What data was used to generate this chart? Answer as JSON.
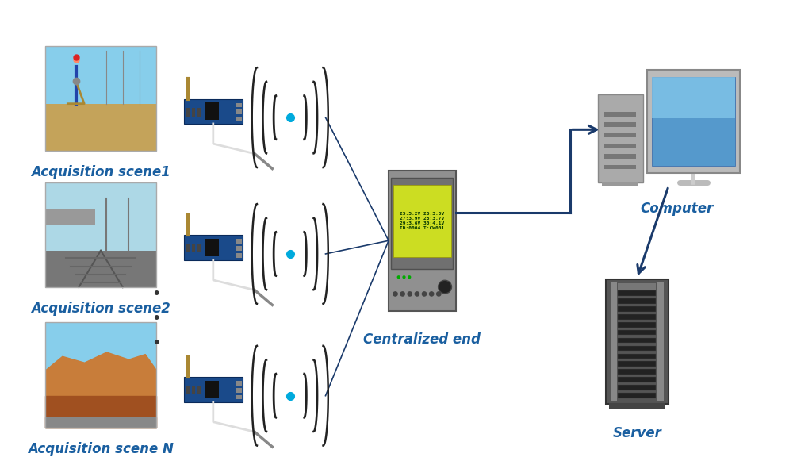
{
  "background_color": "#ffffff",
  "arrow_color": "#1a3a6b",
  "label_color": "#1a5fa0",
  "label_fontsize": 12,
  "label_fontweight": "bold",
  "scene1_label": "Acquisition scene1",
  "scene2_label": "Acquisition scene2",
  "sceneN_label": "Acquisition scene N",
  "central_label": "Centralized end",
  "computer_label": "Computer",
  "server_label": "Server",
  "screen_text": "25:5.2V 26:3.0V\n27:3.9V 28:3.7V\n29:3.6V 30:4.1V\nID:0004 T:CW001"
}
